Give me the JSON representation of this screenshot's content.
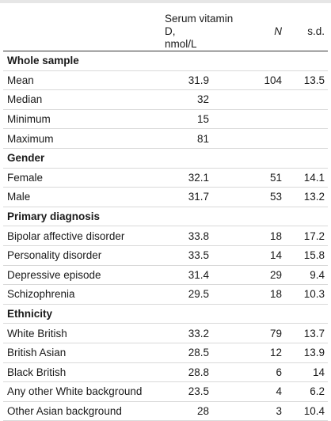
{
  "header": {
    "value_col": "Serum vitamin D,\nnmol/L",
    "value_line1": "Serum vitamin D,",
    "value_line2": "nmol/L",
    "n_col": "N",
    "sd_col": "s.d."
  },
  "sections": [
    {
      "title": "Whole sample",
      "rows": [
        {
          "label": "Mean",
          "value": "31.9",
          "n": "104",
          "sd": "13.5"
        },
        {
          "label": "Median",
          "value": "32",
          "n": "",
          "sd": ""
        },
        {
          "label": "Minimum",
          "value": "15",
          "n": "",
          "sd": ""
        },
        {
          "label": "Maximum",
          "value": "81",
          "n": "",
          "sd": ""
        }
      ]
    },
    {
      "title": "Gender",
      "rows": [
        {
          "label": "Female",
          "value": "32.1",
          "n": "51",
          "sd": "14.1"
        },
        {
          "label": "Male",
          "value": "31.7",
          "n": "53",
          "sd": "13.2"
        }
      ]
    },
    {
      "title": "Primary diagnosis",
      "rows": [
        {
          "label": "Bipolar affective disorder",
          "value": "33.8",
          "n": "18",
          "sd": "17.2"
        },
        {
          "label": "Personality disorder",
          "value": "33.5",
          "n": "14",
          "sd": "15.8"
        },
        {
          "label": "Depressive episode",
          "value": "31.4",
          "n": "29",
          "sd": "9.4"
        },
        {
          "label": "Schizophrenia",
          "value": "29.5",
          "n": "18",
          "sd": "10.3"
        }
      ]
    },
    {
      "title": "Ethnicity",
      "rows": [
        {
          "label": "White British",
          "value": "33.2",
          "n": "79",
          "sd": "13.7"
        },
        {
          "label": "British Asian",
          "value": "28.5",
          "n": "12",
          "sd": "13.9"
        },
        {
          "label": "Black British",
          "value": "28.8",
          "n": "6",
          "sd": "14"
        },
        {
          "label": "Any other White background",
          "value": "23.5",
          "n": "4",
          "sd": "6.2"
        },
        {
          "label": "Other Asian background",
          "value": "28",
          "n": "3",
          "sd": "10.4"
        }
      ]
    }
  ]
}
